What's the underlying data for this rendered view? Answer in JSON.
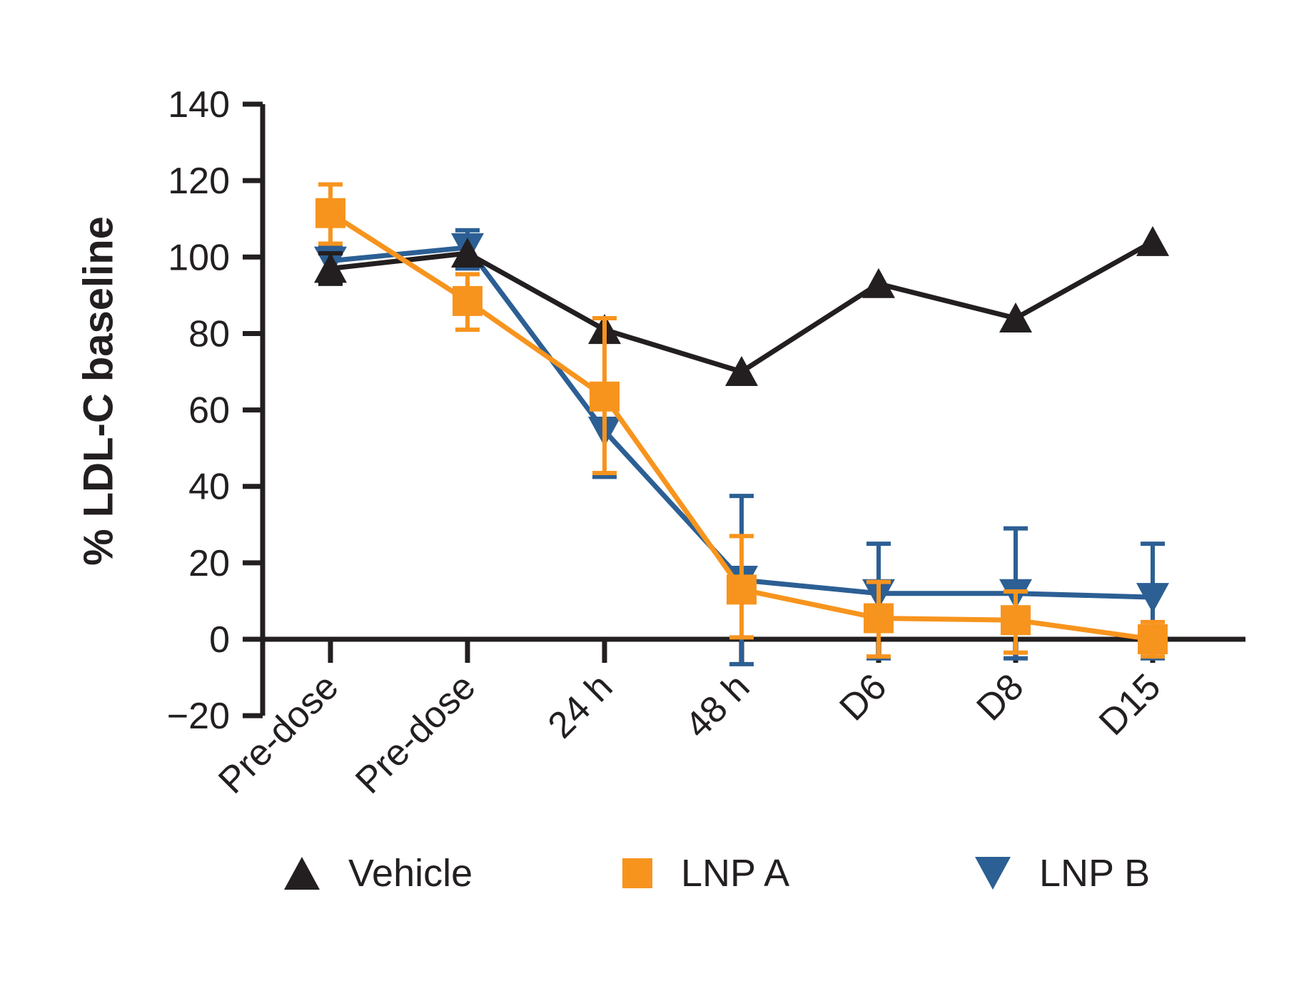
{
  "figure": {
    "background": "#ffffff",
    "axis_color": "#231f20",
    "y_axis_label": "% LDL-C baseline"
  },
  "legend": {
    "position": "bottom",
    "items": [
      {
        "label": "Vehicle",
        "marker": "triangle-up",
        "color": "#231f20"
      },
      {
        "label": "LNP A",
        "marker": "square",
        "color": "#f7941e"
      },
      {
        "label": "LNP B",
        "marker": "triangle-down",
        "color": "#2c5f94"
      }
    ]
  },
  "chart_data": {
    "type": "line",
    "title": "",
    "xlabel": "",
    "ylabel": "% LDL-C baseline",
    "categories": [
      "Pre-dose",
      "Pre-dose",
      "24 h",
      "48 h",
      "D6",
      "D8",
      "D15"
    ],
    "ylim": [
      -20,
      140
    ],
    "y_ticks": [
      -20,
      0,
      20,
      40,
      60,
      80,
      100,
      120,
      140
    ],
    "grid": false,
    "legend_position": "bottom",
    "series": [
      {
        "name": "Vehicle",
        "marker": "triangle-up",
        "color": "#231f20",
        "values": [
          97,
          101,
          81,
          70,
          93,
          84,
          104
        ],
        "err_up": [
          4,
          0,
          0,
          0,
          0,
          0,
          0
        ],
        "err_down": [
          4,
          0,
          0,
          0,
          0,
          0,
          0
        ]
      },
      {
        "name": "LNP A",
        "marker": "square",
        "color": "#f7941e",
        "values": [
          111.5,
          88.5,
          63.5,
          13,
          5.5,
          5,
          0
        ],
        "err_up": [
          7.5,
          7,
          20.5,
          14,
          9.5,
          7.5,
          4.5
        ],
        "err_down": [
          8,
          7.5,
          20,
          12.5,
          10,
          8.5,
          4.5
        ]
      },
      {
        "name": "LNP B",
        "marker": "triangle-down",
        "color": "#2c5f94",
        "values": [
          99,
          102.5,
          54.5,
          15.5,
          12,
          12,
          11
        ],
        "err_up": [
          4,
          4.5,
          12,
          22,
          13,
          17,
          14
        ],
        "err_down": [
          6,
          5.5,
          12,
          22,
          17,
          17,
          16
        ]
      }
    ]
  }
}
